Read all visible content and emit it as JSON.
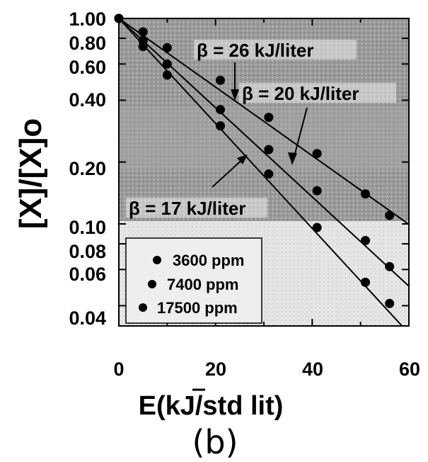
{
  "chart_data": {
    "type": "scatter",
    "xlabel": "E(kJ/std lit)",
    "ylabel": "[X]/[X]o",
    "xlim": [
      0,
      60
    ],
    "ylim": [
      0.03,
      1.0
    ],
    "yscale": "log",
    "x_ticks": [
      "0",
      "20",
      "40",
      "60"
    ],
    "y_ticks": [
      "1.00",
      "0.80",
      "0.60",
      "0.40",
      "0.20",
      "0.10",
      "0.08",
      "0.06",
      "0.04"
    ],
    "legend_position": "lower-left",
    "legend": [
      "3600 ppm",
      "7400 ppm",
      "17500 ppm"
    ],
    "series": [
      {
        "name": "3600 ppm",
        "x": [
          0,
          5,
          10,
          21,
          31,
          41,
          51,
          56
        ],
        "y": [
          1.0,
          0.86,
          0.72,
          0.5,
          0.33,
          0.22,
          0.14,
          0.11
        ]
      },
      {
        "name": "7400 ppm",
        "x": [
          0,
          5,
          10,
          21,
          31,
          41,
          51,
          56
        ],
        "y": [
          1.0,
          0.73,
          0.6,
          0.36,
          0.23,
          0.145,
          0.083,
          0.062
        ]
      },
      {
        "name": "17500 ppm",
        "x": [
          0,
          5,
          10,
          21,
          31,
          41,
          51,
          56
        ],
        "y": [
          1.0,
          0.78,
          0.53,
          0.3,
          0.175,
          0.096,
          0.052,
          0.041
        ]
      }
    ],
    "fit_lines": [
      {
        "label": "β = 26 kJ/liter",
        "beta": 26
      },
      {
        "label": "β = 20 kJ/liter",
        "beta": 20
      },
      {
        "label": "β = 17 kJ/liter",
        "beta": 17
      }
    ],
    "panel_label": "(b)"
  }
}
